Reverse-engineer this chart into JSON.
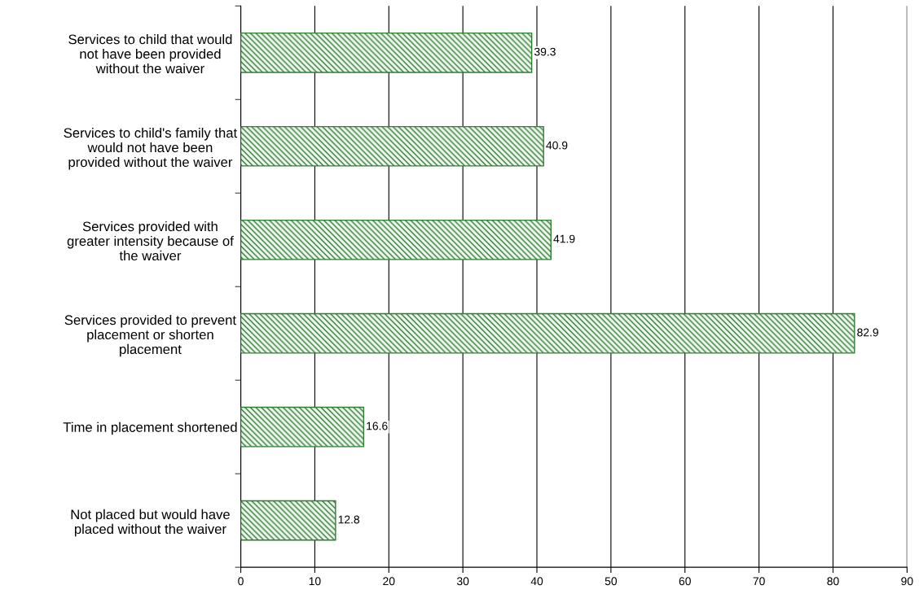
{
  "chart_data": {
    "type": "bar",
    "orientation": "horizontal",
    "categories": [
      "Services to child that would\nnot have been provided\nwithout the waiver",
      "Services to child's family that\nwould not have been\nprovided without the waiver",
      "Services provided with\ngreater intensity because of\nthe waiver",
      "Services provided to prevent\nplacement or shorten\nplacement",
      "Time in placement shortened",
      "Not placed but would have\nplaced without the waiver"
    ],
    "values": [
      39.3,
      40.9,
      41.9,
      82.9,
      16.6,
      12.8
    ],
    "color": "#2e7d32",
    "xlim": [
      0,
      90
    ],
    "xticks": [
      0,
      10,
      20,
      30,
      40,
      50,
      60,
      70,
      80,
      90
    ],
    "grid": "x",
    "data_labels": true
  }
}
